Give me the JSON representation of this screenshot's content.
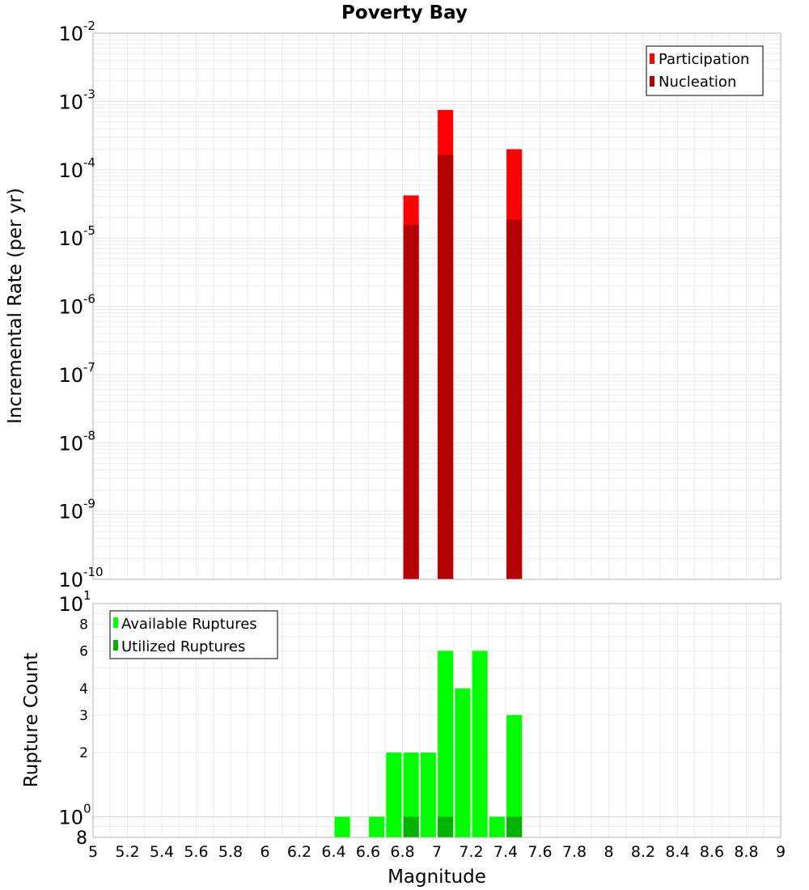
{
  "chart_data": [
    {
      "type": "bar",
      "title": "Poverty Bay",
      "xlabel": "Magnitude",
      "ylabel": "Incremental Rate (per yr)",
      "y_scale": "log",
      "xlim": [
        5,
        9
      ],
      "ylim": [
        1e-10,
        0.01
      ],
      "ytick_labels": [
        {
          "base": "10",
          "exp": "-10"
        },
        {
          "base": "10",
          "exp": "-9"
        },
        {
          "base": "10",
          "exp": "-8"
        },
        {
          "base": "10",
          "exp": "-7"
        },
        {
          "base": "10",
          "exp": "-6"
        },
        {
          "base": "10",
          "exp": "-5"
        },
        {
          "base": "10",
          "exp": "-4"
        },
        {
          "base": "10",
          "exp": "-3"
        },
        {
          "base": "10",
          "exp": "-2"
        }
      ],
      "bar_width": 0.09,
      "grid": true,
      "legend_position": "top-right",
      "series": [
        {
          "name": "Participation",
          "color": "#ff0000",
          "x": [
            6.85,
            7.05,
            7.45
          ],
          "values": [
            4.2e-05,
            0.00075,
            0.0002
          ]
        },
        {
          "name": "Nucleation",
          "color": "#b30000",
          "x": [
            6.85,
            7.05,
            7.45
          ],
          "values": [
            1.55e-05,
            0.000165,
            1.85e-05
          ]
        }
      ]
    },
    {
      "type": "bar",
      "xlabel": "Magnitude",
      "ylabel": "Rupture Count",
      "y_scale": "log",
      "xlim": [
        5,
        9
      ],
      "ylim": [
        0.8,
        10
      ],
      "xtick_labels": [
        "5",
        "5.2",
        "5.4",
        "5.6",
        "5.8",
        "6",
        "6.2",
        "6.4",
        "6.6",
        "6.8",
        "7",
        "7.2",
        "7.4",
        "7.6",
        "7.8",
        "8",
        "8.2",
        "8.4",
        "8.6",
        "8.8",
        "9"
      ],
      "ytick_labels": [
        {
          "value": 8,
          "label": "8"
        },
        {
          "value": 6,
          "label": "6"
        },
        {
          "value": 4,
          "label": "4"
        },
        {
          "value": 3,
          "label": "3"
        },
        {
          "value": 2,
          "label": "2"
        }
      ],
      "ytick_decades": [
        {
          "base": "10",
          "exp": "0"
        },
        {
          "base": "10",
          "exp": "1"
        }
      ],
      "ytick_bottom_label": "8",
      "bar_width": 0.09,
      "grid": true,
      "legend_position": "top-left",
      "series": [
        {
          "name": "Available Ruptures",
          "color": "#00ff00",
          "x": [
            6.45,
            6.65,
            6.75,
            6.85,
            6.95,
            7.05,
            7.15,
            7.25,
            7.35,
            7.45
          ],
          "values": [
            1,
            1,
            2,
            2,
            2,
            6,
            4,
            6,
            1,
            3
          ]
        },
        {
          "name": "Utilized Ruptures",
          "color": "#00b300",
          "x": [
            6.85,
            7.05,
            7.45
          ],
          "values": [
            1,
            1,
            1
          ]
        }
      ]
    }
  ]
}
